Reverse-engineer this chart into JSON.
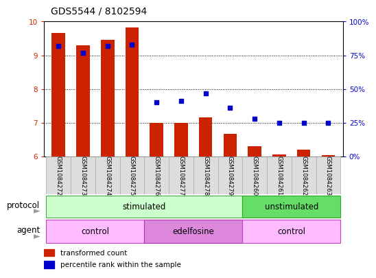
{
  "title": "GDS5544 / 8102594",
  "samples": [
    "GSM1084272",
    "GSM1084273",
    "GSM1084274",
    "GSM1084275",
    "GSM1084276",
    "GSM1084277",
    "GSM1084278",
    "GSM1084279",
    "GSM1084260",
    "GSM1084261",
    "GSM1084262",
    "GSM1084263"
  ],
  "bar_values": [
    9.67,
    9.3,
    9.45,
    9.82,
    7.0,
    7.0,
    7.15,
    6.67,
    6.3,
    6.06,
    6.2,
    6.05
  ],
  "bar_base": 6.0,
  "percentile_values": [
    82,
    77,
    82,
    83,
    40,
    41,
    47,
    36,
    28,
    25,
    25,
    25
  ],
  "ylim_left": [
    6,
    10
  ],
  "ylim_right": [
    0,
    100
  ],
  "yticks_left": [
    6,
    7,
    8,
    9,
    10
  ],
  "yticks_right": [
    0,
    25,
    50,
    75,
    100
  ],
  "ytick_labels_right": [
    "0%",
    "25%",
    "50%",
    "75%",
    "100%"
  ],
  "bar_color": "#cc2200",
  "dot_color": "#0000cc",
  "bg_color": "#ffffff",
  "grid_color": "#000000",
  "protocol_label": "protocol",
  "agent_label": "agent",
  "protocol_stimulated_text": "stimulated",
  "protocol_unstimulated_text": "unstimulated",
  "agent_control_text": "control",
  "agent_edelfosine_text": "edelfosine",
  "legend_bar_label": "transformed count",
  "legend_dot_label": "percentile rank within the sample",
  "color_stimulated": "#ccffcc",
  "color_unstimulated": "#66dd66",
  "color_control": "#ffbbff",
  "color_edelfosine": "#dd88dd",
  "color_sample_box": "#dddddd",
  "xlabel_color_left": "#cc2200",
  "xlabel_color_right": "#0000cc",
  "title_fontsize": 10,
  "tick_fontsize": 7.5,
  "label_fontsize": 8.5
}
